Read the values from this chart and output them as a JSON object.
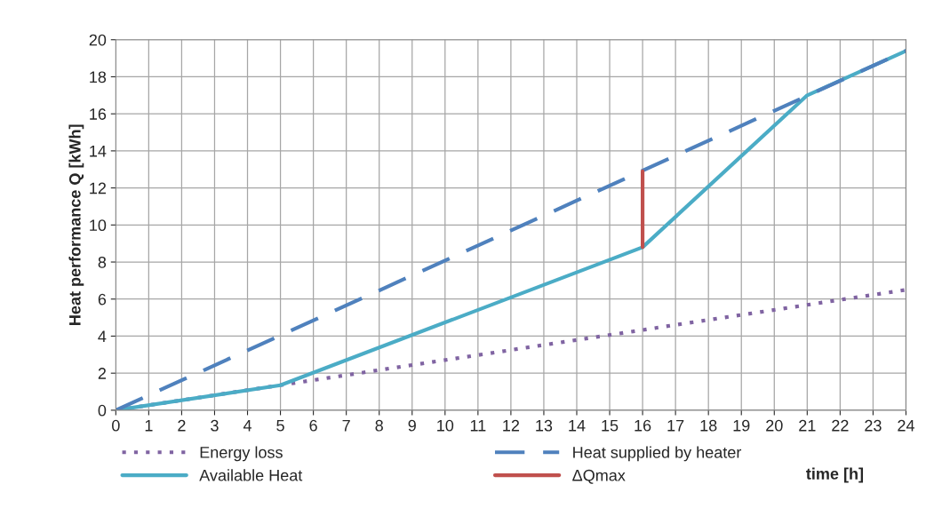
{
  "chart_data": {
    "type": "line",
    "xlabel": "time [h]",
    "ylabel": "Heat performance Q [kWh]",
    "xlim": [
      0,
      24
    ],
    "xticks": [
      0,
      1,
      2,
      3,
      4,
      5,
      6,
      7,
      8,
      9,
      10,
      11,
      12,
      13,
      14,
      15,
      16,
      17,
      18,
      19,
      20,
      21,
      22,
      23,
      24
    ],
    "ylim": [
      0,
      20
    ],
    "yticks": [
      0,
      2,
      4,
      6,
      8,
      10,
      12,
      14,
      16,
      18,
      20
    ],
    "grid": true,
    "legend": "bottom",
    "marker": "none",
    "series": [
      {
        "name": "Energy loss",
        "color": "#8064a2",
        "line_style": "dotted",
        "x": [
          0,
          24
        ],
        "values": [
          0,
          6.5
        ]
      },
      {
        "name": "Available Heat",
        "color": "#4bacc6",
        "line_style": "solid",
        "x": [
          0,
          5,
          16,
          21,
          24
        ],
        "values": [
          0,
          1.35,
          8.8,
          17,
          19.4
        ]
      },
      {
        "name": "Heat supplied by heater",
        "color": "#4f81bd",
        "line_style": "dashed",
        "x": [
          0,
          24
        ],
        "values": [
          0,
          19.4
        ]
      },
      {
        "name": "ΔQmax",
        "color": "#c0504d",
        "line_style": "solid",
        "x": [
          16,
          16
        ],
        "values": [
          8.8,
          12.9
        ]
      }
    ]
  }
}
